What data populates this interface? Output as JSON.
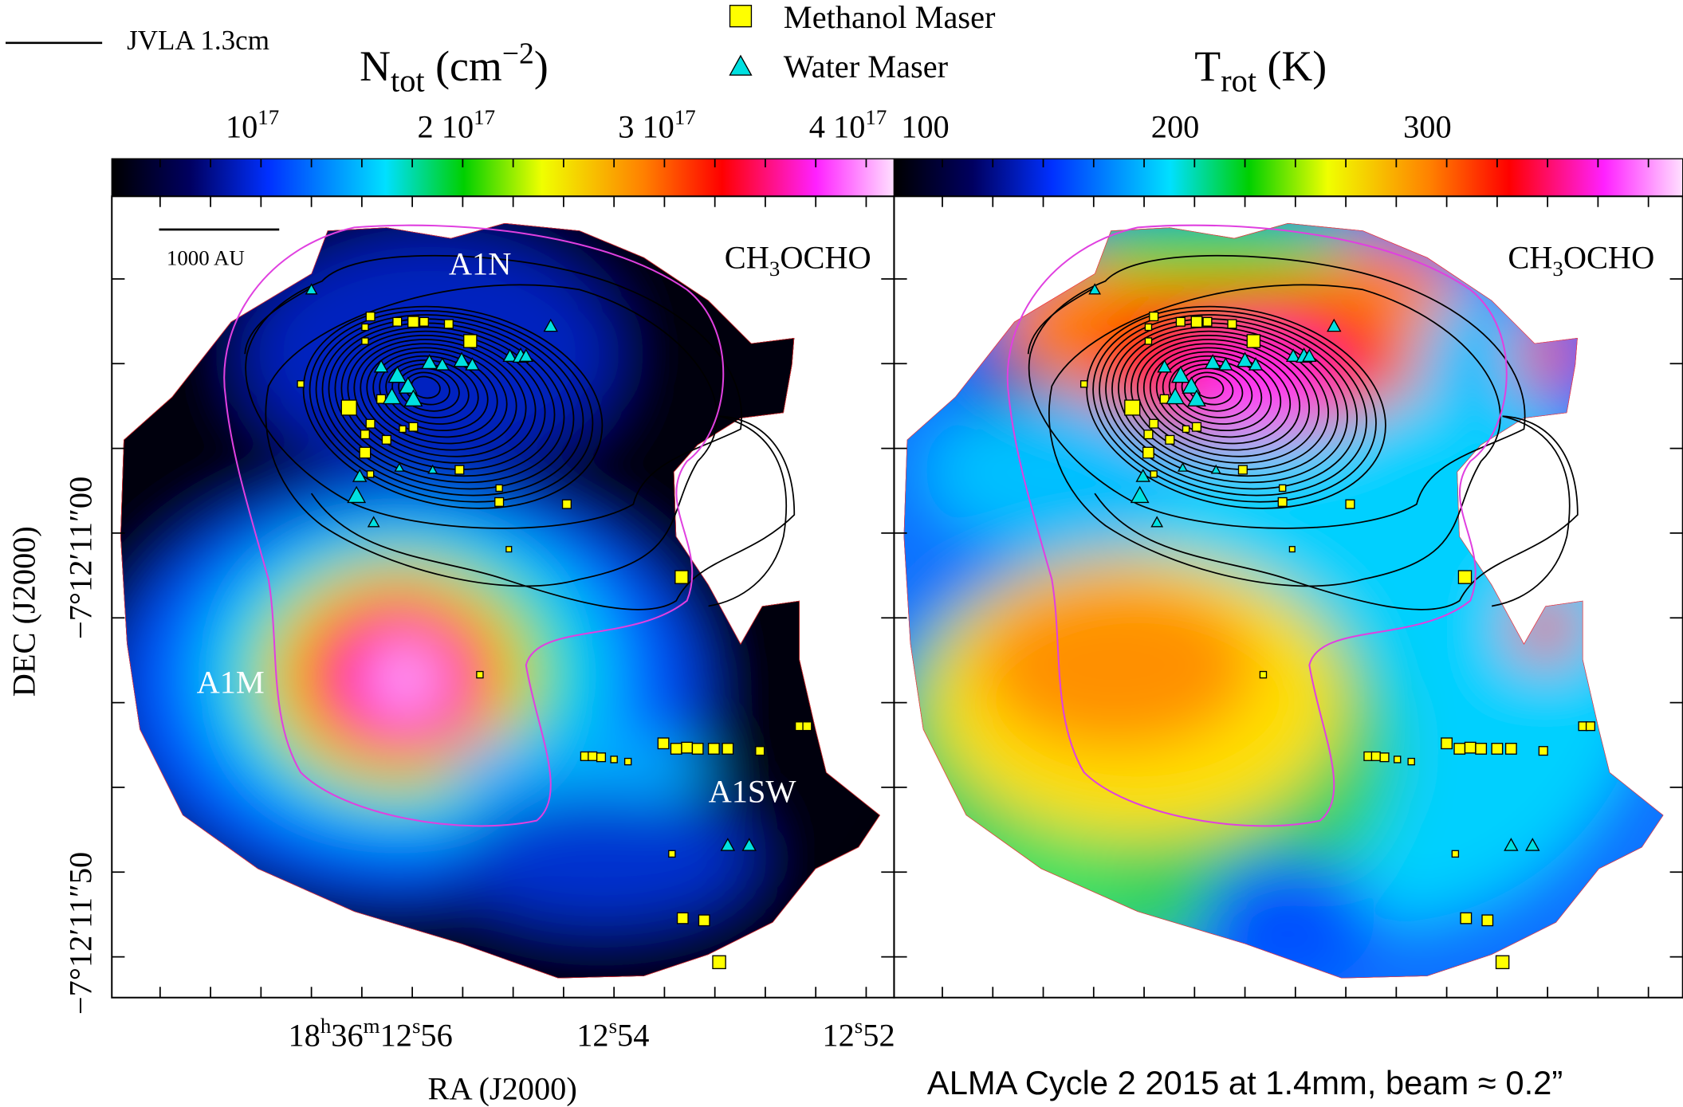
{
  "legend": {
    "contour": "JVLA 1.3cm",
    "methanol": "Methanol Maser",
    "water": "Water Maser"
  },
  "colorbars": [
    {
      "title": {
        "symbol": "N",
        "sub": "tot",
        "unit_open": " (cm",
        "sup": "−2",
        "unit_close": ")"
      },
      "ticks": [
        [
          "10",
          "17"
        ],
        [
          "2 10",
          "17"
        ],
        [
          "3 10",
          "17"
        ],
        [
          "4 10",
          "17"
        ]
      ]
    },
    {
      "title": {
        "symbol": "T",
        "sub": "rot",
        "unit": " (K)"
      },
      "ticks": [
        [
          "100"
        ],
        [
          "200"
        ],
        [
          "300"
        ]
      ]
    }
  ],
  "panels": [
    {
      "molecule": [
        "CH",
        "3",
        "OCHO"
      ],
      "scale_bar": "1000 AU",
      "sources": [
        "A1N",
        "A1M",
        "A1SW"
      ]
    },
    {
      "molecule": [
        "CH",
        "3",
        "OCHO"
      ]
    }
  ],
  "axes": {
    "y_label": "DEC (J2000)",
    "y_ticks": [
      "−7°12′11″00",
      "−7°12′11″50"
    ],
    "x_label": "RA (J2000)",
    "x_ticks": [
      [
        "18",
        "h",
        "36",
        "m",
        "12",
        "s",
        "56"
      ],
      [
        "12",
        "s",
        "54"
      ],
      [
        "12",
        "s",
        "52"
      ]
    ]
  },
  "footer": "ALMA Cycle 2 2015 at 1.4mm, beam ≈ 0.2”"
}
